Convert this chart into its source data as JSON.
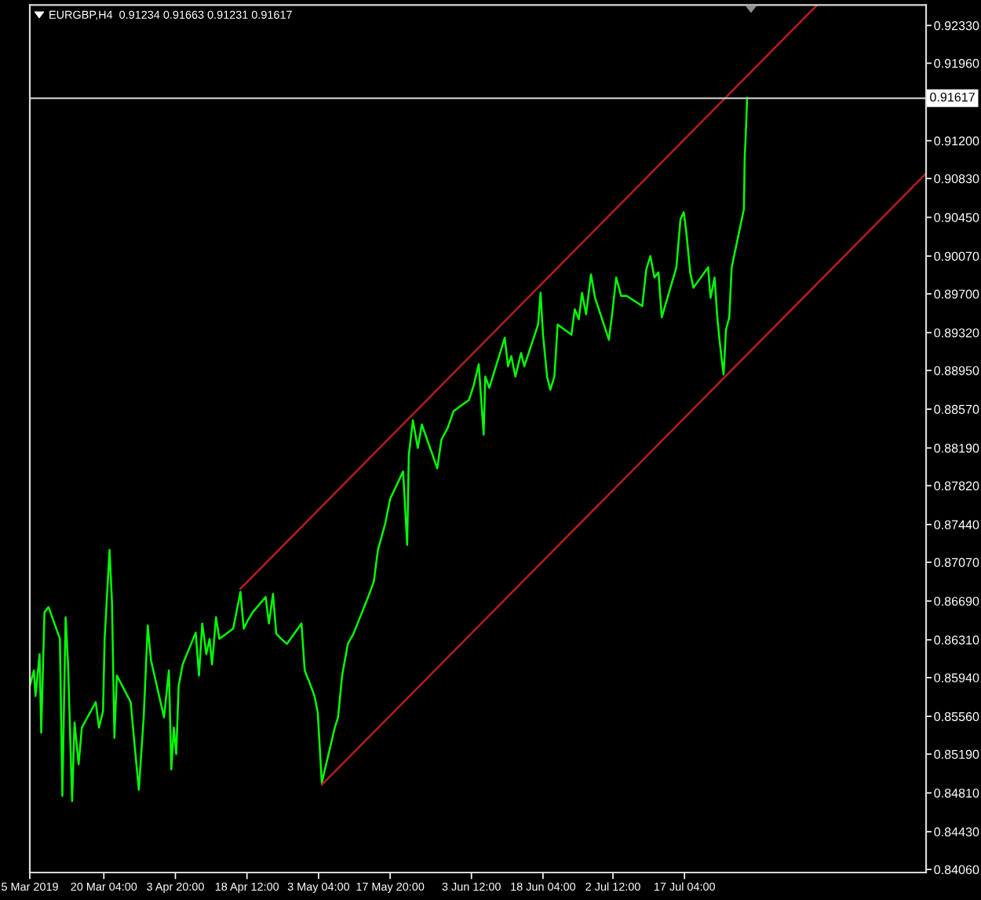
{
  "chart_data": {
    "type": "line",
    "title": "EURGBP,H4  0.91234 0.91663 0.91231 0.91617",
    "series": [
      {
        "color": "#00ff00",
        "x": [
          "2019-03-05T00:00",
          "2019-03-05T20:00",
          "2019-03-06T04:00",
          "2019-03-07T00:00",
          "2019-03-07T08:00",
          "2019-03-08T00:00",
          "2019-03-08T20:00",
          "2019-03-11T04:00",
          "2019-03-11T16:00",
          "2019-03-12T08:00",
          "2019-03-12T20:00",
          "2019-03-13T16:00",
          "2019-03-14T04:00",
          "2019-03-15T00:00",
          "2019-03-15T16:00",
          "2019-03-18T12:00",
          "2019-03-19T04:00",
          "2019-03-20T00:00",
          "2019-03-20T08:00",
          "2019-03-21T08:00",
          "2019-03-21T20:00",
          "2019-03-22T08:00",
          "2019-03-22T20:00",
          "2019-03-25T16:00",
          "2019-03-26T08:00",
          "2019-03-27T08:00",
          "2019-03-28T08:00",
          "2019-03-29T04:00",
          "2019-03-29T20:00",
          "2019-04-01T12:00",
          "2019-04-02T12:00",
          "2019-04-03T00:00",
          "2019-04-03T12:00",
          "2019-04-04T00:00",
          "2019-04-04T12:00",
          "2019-04-05T08:00",
          "2019-04-08T00:00",
          "2019-04-08T16:00",
          "2019-04-09T08:00",
          "2019-04-10T04:00",
          "2019-04-10T20:00",
          "2019-04-11T08:00",
          "2019-04-12T04:00",
          "2019-04-12T20:00",
          "2019-04-15T16:00",
          "2019-04-16T08:00",
          "2019-04-17T04:00",
          "2019-04-17T20:00",
          "2019-04-18T16:00",
          "2019-04-19T16:00",
          "2019-04-22T08:00",
          "2019-04-23T00:00",
          "2019-04-23T20:00",
          "2019-04-24T12:00",
          "2019-04-25T12:00",
          "2019-04-26T16:00",
          "2019-04-29T16:00",
          "2019-04-30T08:00",
          "2019-05-01T04:00",
          "2019-05-02T08:00",
          "2019-05-03T00:00",
          "2019-05-03T20:00",
          "2019-05-06T12:00",
          "2019-05-07T04:00",
          "2019-05-08T00:00",
          "2019-05-09T04:00",
          "2019-05-10T08:00",
          "2019-05-13T08:00",
          "2019-05-14T12:00",
          "2019-05-15T08:00",
          "2019-05-16T20:00",
          "2019-05-17T20:00",
          "2019-05-20T12:00",
          "2019-05-21T08:00",
          "2019-05-21T16:00",
          "2019-05-22T12:00",
          "2019-05-23T12:00",
          "2019-05-24T08:00",
          "2019-05-27T12:00",
          "2019-05-28T08:00",
          "2019-05-29T16:00",
          "2019-05-30T20:00",
          "2019-06-03T00:00",
          "2019-06-04T00:00",
          "2019-06-05T00:00",
          "2019-06-06T00:00",
          "2019-06-06T08:00",
          "2019-06-07T04:00",
          "2019-06-10T08:00",
          "2019-06-11T00:00",
          "2019-06-11T16:00",
          "2019-06-12T12:00",
          "2019-06-13T16:00",
          "2019-06-14T08:00",
          "2019-06-17T04:00",
          "2019-06-17T16:00",
          "2019-06-18T04:00",
          "2019-06-19T00:00",
          "2019-06-19T16:00",
          "2019-06-20T12:00",
          "2019-06-21T04:00",
          "2019-06-24T00:00",
          "2019-06-24T16:00",
          "2019-06-25T12:00",
          "2019-06-26T04:00",
          "2019-06-27T00:00",
          "2019-06-28T00:00",
          "2019-06-28T20:00",
          "2019-07-01T16:00",
          "2019-07-02T08:00",
          "2019-07-03T04:00",
          "2019-07-04T04:00",
          "2019-07-05T08:00",
          "2019-07-08T12:00",
          "2019-07-09T08:00",
          "2019-07-10T04:00",
          "2019-07-11T00:00",
          "2019-07-11T20:00",
          "2019-07-12T12:00",
          "2019-07-15T12:00",
          "2019-07-16T08:00",
          "2019-07-17T00:00",
          "2019-07-17T12:00",
          "2019-07-18T08:00",
          "2019-07-19T00:00",
          "2019-07-22T00:00",
          "2019-07-22T12:00",
          "2019-07-23T08:00",
          "2019-07-23T20:00",
          "2019-07-24T08:00",
          "2019-07-24T20:00",
          "2019-07-25T04:00",
          "2019-07-25T16:00",
          "2019-07-26T08:00",
          "2019-07-26T20:00",
          "2019-07-29T08:00",
          "2019-07-29T12:00",
          "2019-07-29T16:00",
          "2019-07-30T00:00"
        ],
        "values": [
          0.8586,
          0.8601,
          0.8576,
          0.8617,
          0.854,
          0.8658,
          0.8663,
          0.8632,
          0.8478,
          0.8653,
          0.8607,
          0.8473,
          0.855,
          0.8509,
          0.8545,
          0.857,
          0.8545,
          0.8561,
          0.8632,
          0.8719,
          0.8668,
          0.8535,
          0.8596,
          0.857,
          0.8535,
          0.8484,
          0.8555,
          0.8645,
          0.8611,
          0.8555,
          0.8601,
          0.8504,
          0.8545,
          0.8519,
          0.8586,
          0.8607,
          0.8638,
          0.8596,
          0.8647,
          0.8617,
          0.8632,
          0.8607,
          0.8653,
          0.8632,
          0.8642,
          0.8658,
          0.8678,
          0.8642,
          0.865,
          0.8658,
          0.8673,
          0.8647,
          0.8676,
          0.8637,
          0.8632,
          0.8627,
          0.8647,
          0.8601,
          0.8591,
          0.8576,
          0.856,
          0.8491,
          0.8545,
          0.8555,
          0.8596,
          0.8627,
          0.8637,
          0.8673,
          0.8688,
          0.8719,
          0.8745,
          0.8769,
          0.8796,
          0.8724,
          0.8812,
          0.8846,
          0.8819,
          0.8842,
          0.8799,
          0.8827,
          0.8839,
          0.8855,
          0.8866,
          0.8881,
          0.8901,
          0.8832,
          0.8889,
          0.8878,
          0.8927,
          0.8899,
          0.8909,
          0.8889,
          0.8912,
          0.8899,
          0.894,
          0.8971,
          0.893,
          0.8889,
          0.8876,
          0.8889,
          0.894,
          0.893,
          0.8955,
          0.8945,
          0.8971,
          0.895,
          0.8989,
          0.8966,
          0.8925,
          0.895,
          0.8986,
          0.8968,
          0.8968,
          0.8958,
          0.8994,
          0.9007,
          0.8986,
          0.8991,
          0.8947,
          0.8996,
          0.9043,
          0.905,
          0.9032,
          0.8991,
          0.8976,
          0.8996,
          0.8966,
          0.8986,
          0.895,
          0.8925,
          0.8904,
          0.8891,
          0.8935,
          0.8947,
          0.8996,
          0.9053,
          0.9104,
          0.912,
          0.9162
        ]
      },
      {
        "type": "line",
        "color": "#b41e1e",
        "x": [
          "2019-04-17T04:00",
          "2019-08-13T08:00"
        ],
        "values": [
          0.8681,
          0.9253
        ]
      },
      {
        "type": "line",
        "color": "#b41e1e",
        "x": [
          "2019-05-03T20:00",
          "2019-09-04T16:00"
        ],
        "values": [
          0.8489,
          0.9088
        ]
      }
    ],
    "xlim": [
      "2019-03-05T00:00",
      "2019-09-04T16:00"
    ],
    "xticks": [
      {
        "value": "2019-03-05T00:00",
        "label": "5 Mar 2019"
      },
      {
        "value": "2019-03-20T04:00",
        "label": "20 Mar 04:00"
      },
      {
        "value": "2019-04-03T20:00",
        "label": "3 Apr 20:00"
      },
      {
        "value": "2019-04-18T12:00",
        "label": "18 Apr 12:00"
      },
      {
        "value": "2019-05-03T04:00",
        "label": "3 May 04:00"
      },
      {
        "value": "2019-05-17T20:00",
        "label": "17 May 20:00"
      },
      {
        "value": "2019-06-03T12:00",
        "label": "3 Jun 12:00"
      },
      {
        "value": "2019-06-18T04:00",
        "label": "18 Jun 04:00"
      },
      {
        "value": "2019-07-02T12:00",
        "label": "2 Jul 12:00"
      },
      {
        "value": "2019-07-17T04:00",
        "label": "17 Jul 04:00"
      }
    ],
    "ylim": [
      0.8403,
      0.9253
    ],
    "yticks": [
      {
        "value": 0.8406,
        "label": "0.84060"
      },
      {
        "value": 0.8443,
        "label": "0.84430"
      },
      {
        "value": 0.8481,
        "label": "0.84810"
      },
      {
        "value": 0.8519,
        "label": "0.85190"
      },
      {
        "value": 0.8556,
        "label": "0.85560"
      },
      {
        "value": 0.8594,
        "label": "0.85940"
      },
      {
        "value": 0.8631,
        "label": "0.86310"
      },
      {
        "value": 0.8669,
        "label": "0.86690"
      },
      {
        "value": 0.8707,
        "label": "0.87070"
      },
      {
        "value": 0.8744,
        "label": "0.87440"
      },
      {
        "value": 0.8782,
        "label": "0.87820"
      },
      {
        "value": 0.8819,
        "label": "0.88190"
      },
      {
        "value": 0.8857,
        "label": "0.88570"
      },
      {
        "value": 0.8895,
        "label": "0.88950"
      },
      {
        "value": 0.8932,
        "label": "0.89320"
      },
      {
        "value": 0.897,
        "label": "0.89700"
      },
      {
        "value": 0.9007,
        "label": "0.90070"
      },
      {
        "value": 0.9045,
        "label": "0.90450"
      },
      {
        "value": 0.9083,
        "label": "0.90830"
      },
      {
        "value": 0.912,
        "label": "0.91200"
      },
      {
        "value": 0.9196,
        "label": "0.91960"
      },
      {
        "value": 0.9233,
        "label": "0.92330"
      }
    ],
    "ref_lines": [
      {
        "axis": "y",
        "value": 0.91617,
        "label": "0.91617",
        "color": "#c0c0c0"
      }
    ]
  }
}
